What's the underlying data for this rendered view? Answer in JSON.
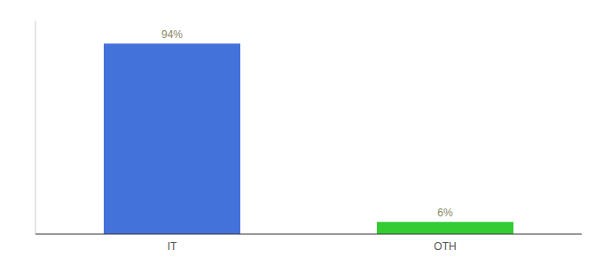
{
  "chart_data": {
    "type": "bar",
    "categories": [
      "IT",
      "OTH"
    ],
    "values": [
      94,
      6
    ],
    "value_labels": [
      "94%",
      "6%"
    ],
    "colors": [
      "#4472db",
      "#33cc33"
    ],
    "ylim": [
      0,
      105
    ],
    "yticks": [],
    "data_labels": true,
    "tick_labels": "x"
  }
}
